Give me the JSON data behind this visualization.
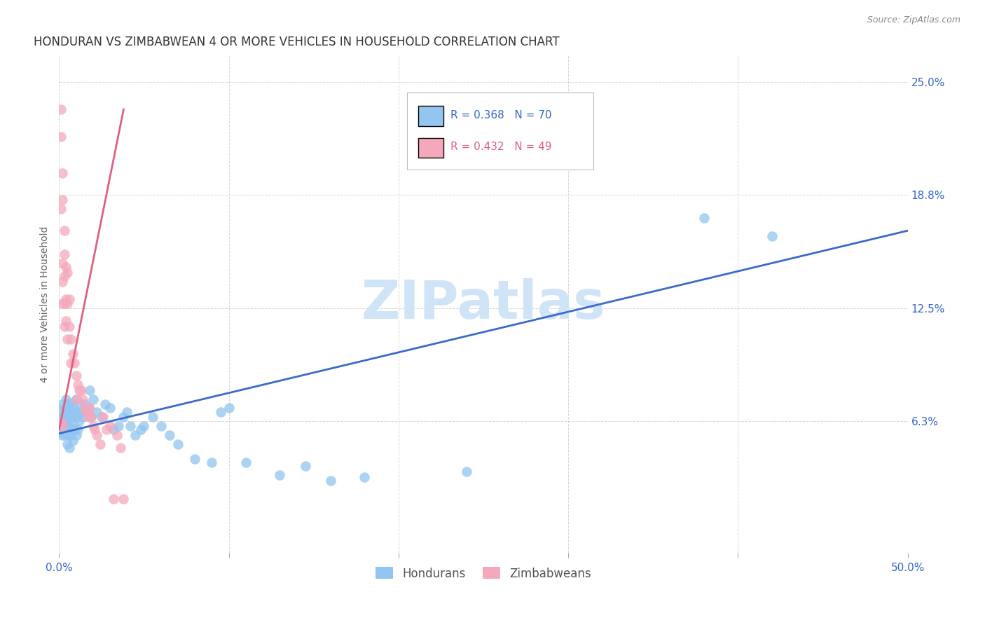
{
  "title": "HONDURAN VS ZIMBABWEAN 4 OR MORE VEHICLES IN HOUSEHOLD CORRELATION CHART",
  "source": "Source: ZipAtlas.com",
  "ylabel": "4 or more Vehicles in Household",
  "xlim": [
    0.0,
    0.5
  ],
  "ylim": [
    -0.01,
    0.265
  ],
  "xtick_labels": [
    "0.0%",
    "",
    "",
    "",
    "",
    "50.0%"
  ],
  "xtick_vals": [
    0.0,
    0.1,
    0.2,
    0.3,
    0.4,
    0.5
  ],
  "ytick_vals": [
    0.063,
    0.125,
    0.188,
    0.25
  ],
  "ytick_labels": [
    "6.3%",
    "12.5%",
    "18.8%",
    "25.0%"
  ],
  "honduran_color": "#92C5F0",
  "zimbabwean_color": "#F5A8BC",
  "trend_honduran_color": "#3A6BC9",
  "trend_zimbabwean_color": "#E06080",
  "watermark_color": "#D0E4F8",
  "honduran_x": [
    0.001,
    0.001,
    0.002,
    0.002,
    0.002,
    0.003,
    0.003,
    0.003,
    0.004,
    0.004,
    0.004,
    0.005,
    0.005,
    0.005,
    0.005,
    0.006,
    0.006,
    0.006,
    0.006,
    0.007,
    0.007,
    0.007,
    0.008,
    0.008,
    0.008,
    0.009,
    0.009,
    0.01,
    0.01,
    0.01,
    0.011,
    0.011,
    0.012,
    0.012,
    0.013,
    0.014,
    0.015,
    0.016,
    0.017,
    0.018,
    0.019,
    0.02,
    0.022,
    0.025,
    0.027,
    0.03,
    0.032,
    0.035,
    0.038,
    0.04,
    0.042,
    0.045,
    0.048,
    0.05,
    0.055,
    0.06,
    0.065,
    0.07,
    0.08,
    0.09,
    0.095,
    0.1,
    0.11,
    0.13,
    0.145,
    0.16,
    0.18,
    0.24,
    0.38,
    0.42
  ],
  "honduran_y": [
    0.068,
    0.058,
    0.072,
    0.065,
    0.055,
    0.07,
    0.063,
    0.055,
    0.068,
    0.058,
    0.075,
    0.072,
    0.065,
    0.06,
    0.05,
    0.068,
    0.06,
    0.055,
    0.048,
    0.073,
    0.065,
    0.055,
    0.07,
    0.062,
    0.052,
    0.068,
    0.058,
    0.075,
    0.065,
    0.055,
    0.068,
    0.058,
    0.073,
    0.063,
    0.068,
    0.065,
    0.072,
    0.068,
    0.07,
    0.08,
    0.065,
    0.075,
    0.068,
    0.065,
    0.072,
    0.07,
    0.058,
    0.06,
    0.065,
    0.068,
    0.06,
    0.055,
    0.058,
    0.06,
    0.065,
    0.06,
    0.055,
    0.05,
    0.042,
    0.04,
    0.068,
    0.07,
    0.04,
    0.033,
    0.038,
    0.03,
    0.032,
    0.035,
    0.175,
    0.165
  ],
  "zimbabwean_x": [
    0.001,
    0.001,
    0.001,
    0.001,
    0.002,
    0.002,
    0.002,
    0.002,
    0.002,
    0.002,
    0.003,
    0.003,
    0.003,
    0.003,
    0.003,
    0.004,
    0.004,
    0.004,
    0.005,
    0.005,
    0.005,
    0.006,
    0.006,
    0.007,
    0.007,
    0.008,
    0.009,
    0.01,
    0.01,
    0.011,
    0.012,
    0.013,
    0.014,
    0.015,
    0.016,
    0.017,
    0.018,
    0.019,
    0.02,
    0.021,
    0.022,
    0.024,
    0.026,
    0.028,
    0.03,
    0.032,
    0.034,
    0.036,
    0.038
  ],
  "zimbabwean_y": [
    0.235,
    0.22,
    0.18,
    0.062,
    0.2,
    0.185,
    0.15,
    0.14,
    0.128,
    0.06,
    0.168,
    0.155,
    0.143,
    0.128,
    0.115,
    0.148,
    0.13,
    0.118,
    0.145,
    0.128,
    0.108,
    0.13,
    0.115,
    0.108,
    0.095,
    0.1,
    0.095,
    0.088,
    0.075,
    0.083,
    0.08,
    0.08,
    0.075,
    0.07,
    0.068,
    0.065,
    0.07,
    0.065,
    0.06,
    0.058,
    0.055,
    0.05,
    0.065,
    0.058,
    0.06,
    0.02,
    0.055,
    0.048,
    0.02
  ],
  "trend_honduran_x0": 0.0,
  "trend_honduran_x1": 0.5,
  "trend_honduran_y0": 0.056,
  "trend_honduran_y1": 0.168,
  "trend_zimbabwean_x0": 0.0,
  "trend_zimbabwean_x1": 0.038,
  "trend_zimbabwean_y0": 0.058,
  "trend_zimbabwean_y1": 0.235
}
